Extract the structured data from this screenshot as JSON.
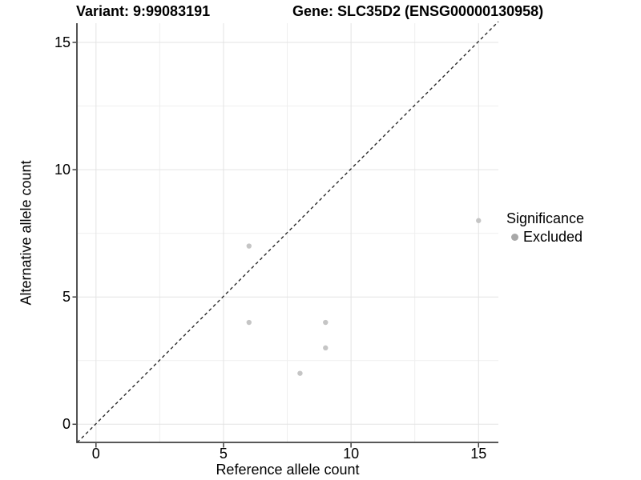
{
  "header": {
    "variant_title": "Variant: 9:99083191",
    "gene_title": "Gene: SLC35D2 (ENSG00000130958)"
  },
  "chart_data": {
    "type": "scatter",
    "xlabel": "Reference allele count",
    "ylabel": "Alternative allele count",
    "xlim": [
      -0.75,
      15.78
    ],
    "ylim": [
      -0.75,
      15.78
    ],
    "x_ticks": [
      0,
      5,
      10,
      15
    ],
    "y_ticks": [
      0,
      5,
      10,
      15
    ],
    "x_minor_ticks": [
      2.5,
      7.5,
      12.5
    ],
    "y_minor_ticks": [
      2.5,
      7.5,
      12.5
    ],
    "grid": true,
    "series": [
      {
        "name": "Excluded",
        "marker_color": "#c5c5c5",
        "points": [
          {
            "x": 6,
            "y": 7
          },
          {
            "x": 6,
            "y": 4
          },
          {
            "x": 8,
            "y": 2
          },
          {
            "x": 9,
            "y": 3
          },
          {
            "x": 9,
            "y": 4
          },
          {
            "x": 15,
            "y": 8
          }
        ]
      }
    ],
    "reference_line": {
      "type": "identity",
      "style": "dashed",
      "color": "#2b2b2b"
    },
    "legend": {
      "title": "Significance",
      "position": "right",
      "entries": [
        {
          "label": "Excluded",
          "color": "#a8a8a8"
        }
      ]
    }
  },
  "colors": {
    "background": "#ffffff",
    "grid_major": "#e3e3e3",
    "grid_minor": "#efefef",
    "axis_line": "#404040",
    "text": "#000000"
  }
}
